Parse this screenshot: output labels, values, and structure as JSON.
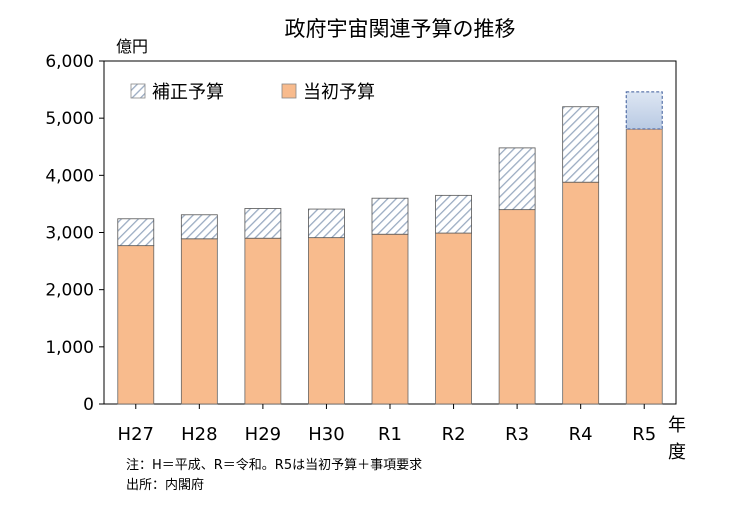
{
  "chart_data": {
    "type": "bar",
    "stacked": true,
    "title": "政府宇宙関連予算の推移",
    "ylabel": "億円",
    "xlabel": "年度",
    "ylim": [
      0,
      6000
    ],
    "yticks": [
      "0",
      "1,000",
      "2,000",
      "3,000",
      "4,000",
      "5,000",
      "6,000"
    ],
    "categories": [
      "H27",
      "H28",
      "H29",
      "H30",
      "R1",
      "R2",
      "R3",
      "R4",
      "R5"
    ],
    "series": [
      {
        "name": "当初予算",
        "color": "#f8bb8d",
        "values": [
          2770,
          2890,
          2900,
          2910,
          2970,
          2990,
          3400,
          3880,
          4810
        ]
      },
      {
        "name": "補正予算",
        "color": "#aebfd4",
        "values": [
          470,
          420,
          520,
          500,
          630,
          660,
          1080,
          1320,
          650
        ]
      }
    ],
    "legend": [
      "補正予算",
      "当初予算"
    ],
    "legend_position": "top-left",
    "r5_note": "R5 補正予算 portion = 事項要求 (shown as blue gradient with dashed outline)"
  },
  "notes": {
    "line1": "注：H＝平成、R＝令和。R5は当初予算＋事項要求",
    "line2": "出所：内閣府"
  }
}
